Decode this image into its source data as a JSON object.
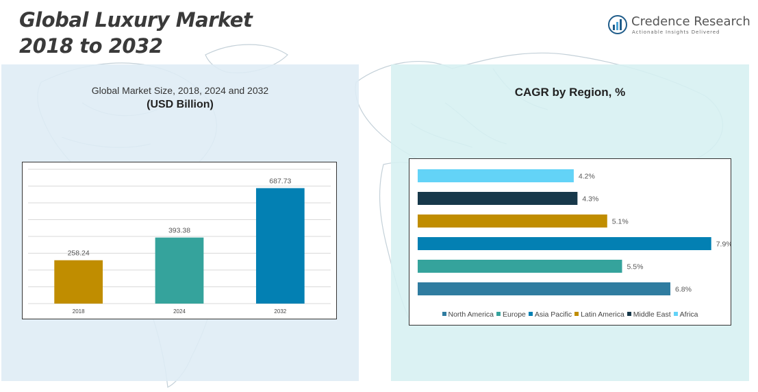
{
  "title": {
    "line1": "Global Luxury Market",
    "line2": "2018 to 2032"
  },
  "brand": {
    "name": "Credence Research",
    "tagline": "Actionable Insights Delivered",
    "color": "#1f5c8a",
    "accent": "#4aa3d6"
  },
  "colors": {
    "left_panel": "#deecf5",
    "right_panel": "#d6f0f1",
    "map": "#b8c7d0"
  },
  "left_chart": {
    "subtitle": "Global Market Size, 2018, 2024 and 2032",
    "unit": "(USD Billion)"
  },
  "right_chart": {
    "title": "CAGR by Region, %"
  },
  "chart_data": [
    {
      "type": "bar",
      "title": "Global Market Size, 2018, 2024 and 2032",
      "ylabel": "USD Billion",
      "categories": [
        "2018",
        "2024",
        "2032"
      ],
      "values": [
        258.24,
        393.38,
        687.73
      ],
      "labels": [
        "258.24",
        "393.38",
        "687.73"
      ],
      "colors": [
        "#c08d00",
        "#35a39c",
        "#0380b3"
      ],
      "ylim": [
        0,
        800
      ],
      "grid": true
    },
    {
      "type": "bar",
      "orientation": "horizontal",
      "title": "CAGR by Region, %",
      "categories": [
        "Africa",
        "Middle East",
        "Latin America",
        "Asia Pacific",
        "Europe",
        "North America"
      ],
      "values": [
        4.2,
        4.3,
        5.1,
        7.9,
        5.5,
        6.8
      ],
      "labels": [
        "4.2%",
        "4.3%",
        "5.1%",
        "7.9%",
        "5.5%",
        "6.8%"
      ],
      "colors": [
        "#63d3f7",
        "#17384a",
        "#c08d00",
        "#0380b3",
        "#35a39c",
        "#2f7ca0"
      ],
      "xlim": [
        0,
        8.2
      ],
      "legend": [
        "North America",
        "Europe",
        "Asia Pacific",
        "Latin America",
        "Middle East",
        "Africa"
      ],
      "legend_colors": [
        "#2f7ca0",
        "#35a39c",
        "#0380b3",
        "#c08d00",
        "#17384a",
        "#63d3f7"
      ],
      "legend_position": "bottom"
    }
  ]
}
